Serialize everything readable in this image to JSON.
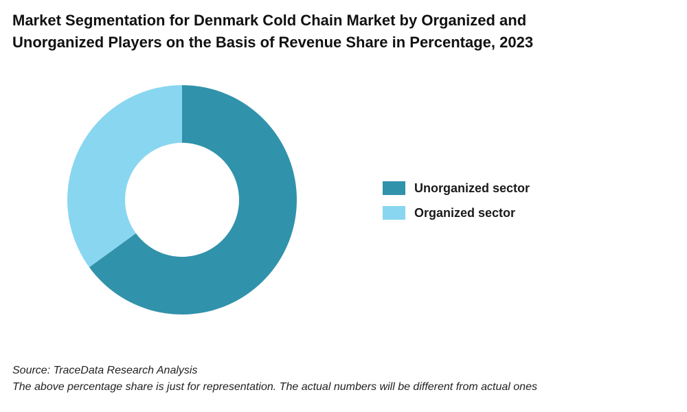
{
  "title_line1": "Market Segmentation for Denmark Cold Chain Market by Organized and",
  "title_line2": "Unorganized Players on the Basis of Revenue Share in Percentage, 2023",
  "chart_data": {
    "type": "pie",
    "donut": true,
    "categories": [
      "Unorganized sector",
      "Organized sector"
    ],
    "values": [
      65,
      35
    ],
    "colors": [
      "#3192ab",
      "#89d6f0"
    ],
    "legend_position": "right",
    "title": "Market Segmentation for Denmark Cold Chain Market by Organized and Unorganized Players on the Basis of Revenue Share in Percentage, 2023"
  },
  "footer": {
    "source": "Source: TraceData Research Analysis",
    "note": "The above percentage share is just for representation. The actual numbers will be different from actual ones"
  }
}
